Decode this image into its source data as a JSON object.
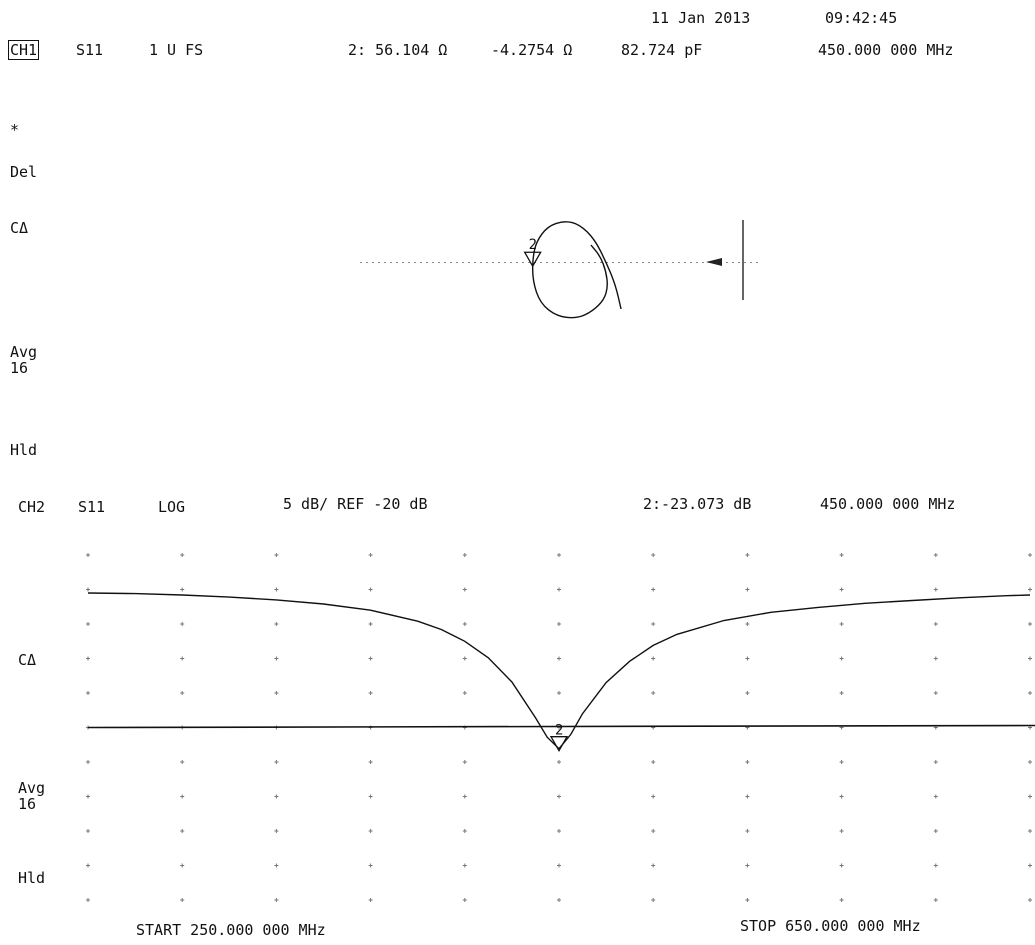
{
  "header": {
    "date": "11 Jan 2013",
    "time": "09:42:45"
  },
  "ch1": {
    "label": "CH1",
    "param": "S11",
    "format": "1 U FS",
    "marker_readout": "2: 56.104 Ω",
    "reactance": "-4.2754 Ω",
    "capacitance": "82.724 pF",
    "marker_freq": "450.000 000 MHz",
    "side_labels": {
      "star": "*",
      "del": "Del",
      "cal": "CΔ",
      "avg": "Avg",
      "avg_count": "16",
      "hold": "Hld"
    }
  },
  "ch2": {
    "label": "CH2",
    "param": "S11",
    "format": "LOG",
    "scale": "5 dB/ REF -20 dB",
    "marker_readout": "2:-23.073 dB",
    "marker_freq": "450.000 000 MHz",
    "side_labels": {
      "cal": "CΔ",
      "avg": "Avg",
      "avg_count": "16",
      "hold": "Hld"
    },
    "start_label": "START 250.000 000 MHz",
    "stop_label": "STOP 650.000 000 MHz"
  },
  "chart_data": [
    {
      "type": "line",
      "subtype": "smith",
      "marker": {
        "id": "2",
        "label": "2",
        "freq_mhz": 450,
        "resistance_ohm": 56.104,
        "reactance_ohm": -4.2754,
        "capacitance_pf": 82.724
      },
      "gamma_points": [
        [
          0.33,
          -0.25
        ],
        [
          0.3,
          -0.12
        ],
        [
          0.25,
          0.0
        ],
        [
          0.19,
          0.12
        ],
        [
          0.11,
          0.2
        ],
        [
          0.03,
          0.22
        ],
        [
          -0.06,
          0.19
        ],
        [
          -0.12,
          0.11
        ],
        [
          -0.14,
          0.02
        ],
        [
          -0.14,
          -0.1
        ],
        [
          -0.1,
          -0.22
        ],
        [
          -0.01,
          -0.29
        ],
        [
          0.1,
          -0.3
        ],
        [
          0.18,
          -0.26
        ],
        [
          0.24,
          -0.2
        ],
        [
          0.26,
          -0.13
        ],
        [
          0.25,
          -0.05
        ],
        [
          0.22,
          0.03
        ],
        [
          0.17,
          0.09
        ]
      ]
    },
    {
      "type": "line",
      "xlabel": "",
      "ylabel": "",
      "x_unit": "MHz",
      "y_unit": "dB",
      "xlim": [
        250,
        650
      ],
      "ylim": [
        -45,
        5
      ],
      "ref_db": -20,
      "db_per_div": 5,
      "grid": true,
      "series": [
        {
          "x": [
            250,
            270,
            290,
            310,
            330,
            350,
            370,
            390,
            400,
            410,
            420,
            430,
            440,
            445,
            450,
            455,
            460,
            470,
            480,
            490,
            500,
            520,
            540,
            560,
            580,
            600,
            620,
            640,
            650
          ],
          "values": [
            -0.5,
            -0.6,
            -0.8,
            -1.1,
            -1.5,
            -2.1,
            -3.0,
            -4.6,
            -5.8,
            -7.5,
            -9.9,
            -13.4,
            -18.6,
            -21.4,
            -23.07,
            -21.0,
            -18.0,
            -13.5,
            -10.4,
            -8.1,
            -6.5,
            -4.5,
            -3.3,
            -2.6,
            -2.0,
            -1.6,
            -1.2,
            -0.9,
            -0.8
          ]
        }
      ],
      "reference_line_db": -20,
      "marker": {
        "id": "2",
        "label": "2",
        "x": 450,
        "y": -23.073
      }
    }
  ]
}
